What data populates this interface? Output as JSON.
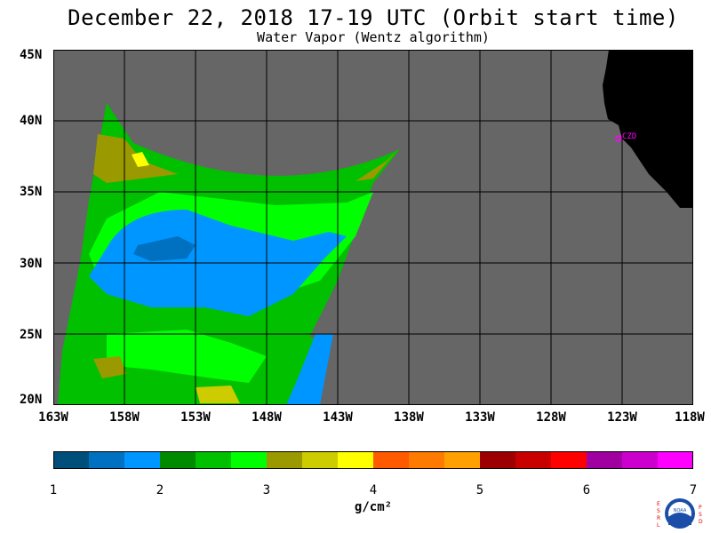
{
  "title": "December 22, 2018  17-19 UTC  (Orbit start time)",
  "subtitle": "Water Vapor (Wentz algorithm)",
  "map": {
    "lat_labels": [
      "45N",
      "40N",
      "35N",
      "30N",
      "25N",
      "20N"
    ],
    "lon_labels": [
      "163W",
      "158W",
      "153W",
      "148W",
      "143W",
      "138W",
      "133W",
      "128W",
      "123W",
      "118W"
    ],
    "lat_range": [
      20,
      45
    ],
    "lon_range": [
      -163,
      -118
    ],
    "station_label": "CZD",
    "colors": {
      "no_data": "#666666",
      "land": "#000000",
      "station": "#ff00ff",
      "grid": "#000000"
    }
  },
  "colorbar": {
    "tick_labels": [
      "1",
      "2",
      "3",
      "4",
      "5",
      "6",
      "7"
    ],
    "units_label": "g/cm²",
    "colors": [
      "#004e7a",
      "#0070c0",
      "#0096ff",
      "#008a00",
      "#00c000",
      "#00ff00",
      "#9a9a00",
      "#cccc00",
      "#ffff00",
      "#ff5a00",
      "#ff7a00",
      "#ffa000",
      "#9c0000",
      "#c80000",
      "#ff0000",
      "#a000a0",
      "#cc00cc",
      "#ff00ff"
    ]
  },
  "logo": {
    "left_letters": [
      "E",
      "S",
      "R",
      "L"
    ],
    "right_letters": [
      "P",
      "S",
      "D"
    ],
    "text": "NOAA"
  }
}
